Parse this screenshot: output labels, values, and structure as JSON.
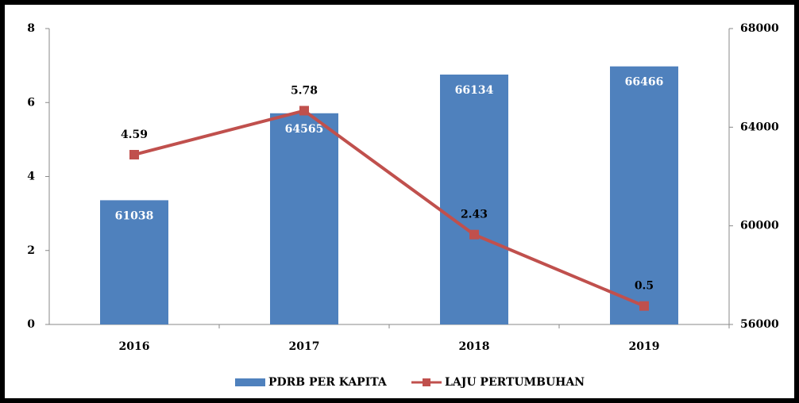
{
  "chart_data": {
    "type": "bar",
    "categories": [
      "2016",
      "2017",
      "2018",
      "2019"
    ],
    "series": [
      {
        "name": "PDRB PER KAPITA",
        "type": "bar",
        "axis": "y2",
        "color": "#4f81bd",
        "values": [
          61038,
          64565,
          66134,
          66466
        ]
      },
      {
        "name": "LAJU PERTUMBUHAN",
        "type": "line",
        "axis": "y",
        "color": "#c0504d",
        "values": [
          4.59,
          5.78,
          2.43,
          0.5
        ]
      }
    ],
    "ylim": [
      0,
      8
    ],
    "yticks": [
      0,
      2,
      4,
      6,
      8
    ],
    "y2lim": [
      56000,
      68000
    ],
    "y2ticks": [
      56000,
      60000,
      64000,
      68000
    ],
    "legend": "bottom"
  }
}
